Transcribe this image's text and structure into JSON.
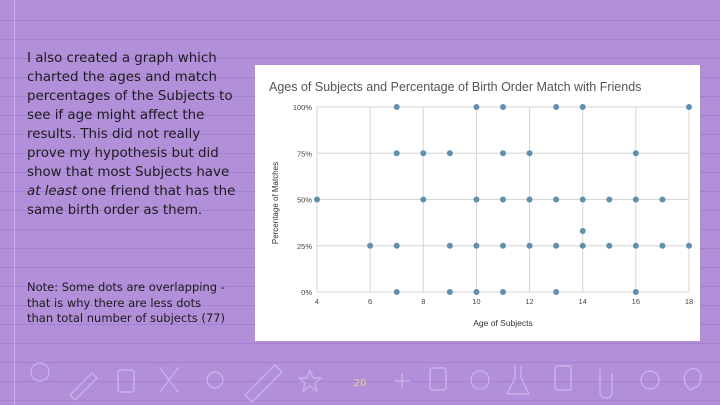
{
  "text": {
    "paragraph_part1": "I also created a graph which charted the ages and match percentages of the Subjects to see if age might affect the results. This did not really prove my hypothesis but did show that most Subjects have ",
    "paragraph_emphasis": "at least",
    "paragraph_part2": " one friend that has the same birth order as them.",
    "note": "Note: Some dots are overlapping - that is  why there are less dots than total number of subjects (77)"
  },
  "page_number": "20",
  "colors": {
    "background": "#b18fd9",
    "chart_point": "#5f90ae",
    "chart_background": "#ffffff"
  },
  "chart_data": {
    "type": "scatter",
    "title": "Ages of Subjects and Percentage of Birth Order Match with Friends",
    "xlabel": "Age of Subjects",
    "ylabel": "Percentage of Matches",
    "xlim": [
      4,
      18
    ],
    "ylim": [
      0,
      100
    ],
    "x_ticks": [
      4,
      6,
      8,
      10,
      12,
      14,
      16,
      18
    ],
    "y_ticks": [
      {
        "value": 0,
        "label": "0%"
      },
      {
        "value": 25,
        "label": "25%"
      },
      {
        "value": 50,
        "label": "50%"
      },
      {
        "value": 75,
        "label": "75%"
      },
      {
        "value": 100,
        "label": "100%"
      }
    ],
    "grid": true,
    "points": [
      {
        "x": 7,
        "y": 100
      },
      {
        "x": 10,
        "y": 100
      },
      {
        "x": 11,
        "y": 100
      },
      {
        "x": 13,
        "y": 100
      },
      {
        "x": 14,
        "y": 100
      },
      {
        "x": 18,
        "y": 100
      },
      {
        "x": 7,
        "y": 75
      },
      {
        "x": 8,
        "y": 75
      },
      {
        "x": 9,
        "y": 75
      },
      {
        "x": 11,
        "y": 75
      },
      {
        "x": 12,
        "y": 75
      },
      {
        "x": 16,
        "y": 75
      },
      {
        "x": 4,
        "y": 50
      },
      {
        "x": 8,
        "y": 50
      },
      {
        "x": 10,
        "y": 50
      },
      {
        "x": 11,
        "y": 50
      },
      {
        "x": 12,
        "y": 50
      },
      {
        "x": 13,
        "y": 50
      },
      {
        "x": 14,
        "y": 50
      },
      {
        "x": 15,
        "y": 50
      },
      {
        "x": 16,
        "y": 50
      },
      {
        "x": 17,
        "y": 50
      },
      {
        "x": 14,
        "y": 33
      },
      {
        "x": 6,
        "y": 25
      },
      {
        "x": 7,
        "y": 25
      },
      {
        "x": 9,
        "y": 25
      },
      {
        "x": 10,
        "y": 25
      },
      {
        "x": 11,
        "y": 25
      },
      {
        "x": 12,
        "y": 25
      },
      {
        "x": 13,
        "y": 25
      },
      {
        "x": 14,
        "y": 25
      },
      {
        "x": 15,
        "y": 25
      },
      {
        "x": 16,
        "y": 25
      },
      {
        "x": 17,
        "y": 25
      },
      {
        "x": 18,
        "y": 25
      },
      {
        "x": 7,
        "y": 0
      },
      {
        "x": 9,
        "y": 0
      },
      {
        "x": 10,
        "y": 0
      },
      {
        "x": 11,
        "y": 0
      },
      {
        "x": 13,
        "y": 0
      },
      {
        "x": 16,
        "y": 0
      }
    ]
  }
}
